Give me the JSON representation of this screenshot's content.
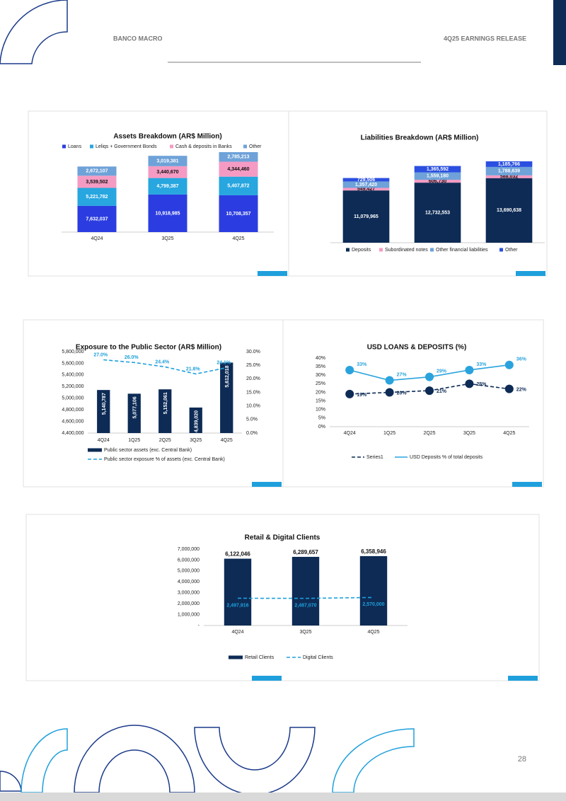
{
  "header": {
    "company": "BANCO MACRO",
    "report": "4Q25 EARNINGS RELEASE"
  },
  "page_number": "28",
  "chart_data": [
    {
      "type": "bar",
      "stacked": true,
      "title": "Assets Breakdown (AR$ Million)",
      "legend": "top",
      "categories": [
        "4Q24",
        "3Q25",
        "4Q25"
      ],
      "series": [
        {
          "name": "Loans",
          "color": "#2b3de0",
          "values": [
            7632037,
            10918985,
            10708357
          ],
          "value_labels": [
            "7,632,037",
            "10,918,985",
            "10,708,357"
          ]
        },
        {
          "name": "Leliqs + Government Bonds",
          "color": "#27a6df",
          "values": [
            5221782,
            4799387,
            5407872
          ],
          "value_labels": [
            "5,221,782",
            "4,799,387",
            "5,407,872"
          ]
        },
        {
          "name": "Cash & deposits in Banks",
          "color": "#f59bc3",
          "values": [
            3539502,
            3440670,
            4344460
          ],
          "value_labels": [
            "3,539,502",
            "3,440,670",
            "4,344,460"
          ]
        },
        {
          "name": "Other",
          "color": "#6ea2d8",
          "values": [
            2672107,
            3019381,
            2785213
          ],
          "value_labels": [
            "2,672,107",
            "3,019,381",
            "2,785,213"
          ]
        }
      ]
    },
    {
      "type": "bar",
      "stacked": true,
      "title": "Liabilities Breakdown (AR$ Million)",
      "legend": "bottom",
      "categories": [
        "4Q24",
        "3Q25",
        "4Q25"
      ],
      "series": [
        {
          "name": "Deposits",
          "color": "#0d2b55",
          "values": [
            11079965,
            12732553,
            13690638
          ],
          "value_labels": [
            "11,079,965",
            "12,732,553",
            "13,690,638"
          ]
        },
        {
          "name": "Subordinated notes",
          "color": "#f59bc3",
          "values": [
            549427,
            606730,
            588032
          ],
          "value_labels": [
            "549,427",
            "606,730",
            "588,032"
          ]
        },
        {
          "name": "Other financial liabilities",
          "color": "#6ea2d8",
          "values": [
            1357420,
            1559180,
            1788639
          ],
          "value_labels": [
            "1,357,420",
            "1,559,180",
            "1,788,639"
          ]
        },
        {
          "name": "Other",
          "color": "#2b4fe0",
          "values": [
            729506,
            1365592,
            1185766
          ],
          "value_labels": [
            "729,506",
            "1,365,592",
            "1,185,766"
          ]
        }
      ]
    },
    {
      "type": "bar",
      "title": "Exposure to the Public Sector (AR$ Million)",
      "legend": "bottom",
      "categories": [
        "4Q24",
        "1Q25",
        "2Q25",
        "3Q25",
        "4Q25"
      ],
      "ylim": [
        4400000,
        5800000
      ],
      "yticks": [
        {
          "value": 4400000,
          "label": "4,400,000"
        },
        {
          "value": 4600000,
          "label": "4,600,000"
        },
        {
          "value": 4800000,
          "label": "4,800,000"
        },
        {
          "value": 5000000,
          "label": "5,000,000"
        },
        {
          "value": 5200000,
          "label": "5,200,000"
        },
        {
          "value": 5400000,
          "label": "5,400,000"
        },
        {
          "value": 5600000,
          "label": "5,600,000"
        },
        {
          "value": 5800000,
          "label": "5,800,000"
        }
      ],
      "y2lim": [
        0,
        30
      ],
      "y2ticks": [
        {
          "value": 0,
          "label": "0.0%"
        },
        {
          "value": 5,
          "label": "5.0%"
        },
        {
          "value": 10,
          "label": "10.0%"
        },
        {
          "value": 15,
          "label": "15.0%"
        },
        {
          "value": 20,
          "label": "20.0%"
        },
        {
          "value": 25,
          "label": "25.0%"
        },
        {
          "value": 30,
          "label": "30.0%"
        }
      ],
      "series": [
        {
          "name": "Public sector assets (exc. Central Bank)",
          "color": "#0d2b55",
          "values": [
            5140787,
            5077106,
            5152061,
            4839020,
            5612018
          ],
          "value_labels": [
            "5,140,787",
            "5,077,106",
            "5,152,061",
            "4,839,020",
            "5,612,018"
          ]
        },
        {
          "name": "Public sector exposure % of assets (exc. Central Bank)",
          "type": "line",
          "axis": "y2",
          "dashed": true,
          "color": "#1fa0dc",
          "values": [
            27.0,
            26.0,
            24.4,
            21.8,
            24.1
          ],
          "value_labels": [
            "27.0%",
            "26.0%",
            "24.4%",
            "21.8%",
            "24.1%"
          ]
        }
      ]
    },
    {
      "type": "line",
      "title": "USD LOANS & DEPOSITS (%)",
      "legend": "bottom",
      "categories": [
        "4Q24",
        "1Q25",
        "2Q25",
        "3Q25",
        "4Q25"
      ],
      "ylim": [
        0,
        40
      ],
      "yticks": [
        {
          "value": 0,
          "label": "0%"
        },
        {
          "value": 5,
          "label": "5%"
        },
        {
          "value": 10,
          "label": "10%"
        },
        {
          "value": 15,
          "label": "15%"
        },
        {
          "value": 20,
          "label": "20%"
        },
        {
          "value": 25,
          "label": "25%"
        },
        {
          "value": 30,
          "label": "30%"
        },
        {
          "value": 35,
          "label": "35%"
        },
        {
          "value": 40,
          "label": "40%"
        }
      ],
      "series": [
        {
          "name": "Series1",
          "color": "#0d2b55",
          "dashed": true,
          "markers": true,
          "values": [
            19,
            20,
            21,
            25,
            22
          ],
          "value_labels": [
            "19%",
            "20%",
            "21%",
            "25%",
            "22%"
          ]
        },
        {
          "name": "USD Deposits % of total deposits",
          "color": "#2aa3dd",
          "markers": true,
          "values": [
            33,
            27,
            29,
            33,
            36
          ],
          "value_labels": [
            "33%",
            "27%",
            "29%",
            "33%",
            "36%"
          ]
        }
      ]
    },
    {
      "type": "bar",
      "title": "Retail & Digital Clients",
      "legend": "bottom",
      "categories": [
        "4Q24",
        "3Q25",
        "4Q25"
      ],
      "ylim": [
        0,
        7000000
      ],
      "yticks": [
        {
          "value": 0,
          "label": "-"
        },
        {
          "value": 1000000,
          "label": "1,000,000"
        },
        {
          "value": 2000000,
          "label": "2,000,000"
        },
        {
          "value": 3000000,
          "label": "3,000,000"
        },
        {
          "value": 4000000,
          "label": "4,000,000"
        },
        {
          "value": 5000000,
          "label": "5,000,000"
        },
        {
          "value": 6000000,
          "label": "6,000,000"
        },
        {
          "value": 7000000,
          "label": "7,000,000"
        }
      ],
      "series": [
        {
          "name": "Retail Clients",
          "color": "#0d2b55",
          "values": [
            6122046,
            6289657,
            6358946
          ],
          "value_labels": [
            "6,122,046",
            "6,289,657",
            "6,358,946"
          ]
        },
        {
          "name": "Digital Clients",
          "type": "line",
          "dashed": true,
          "color": "#1fa0dc",
          "values": [
            2497916,
            2487070,
            2570000
          ],
          "value_labels": [
            "2,497,916",
            "2,487,070",
            "2,570,000"
          ]
        }
      ]
    }
  ]
}
